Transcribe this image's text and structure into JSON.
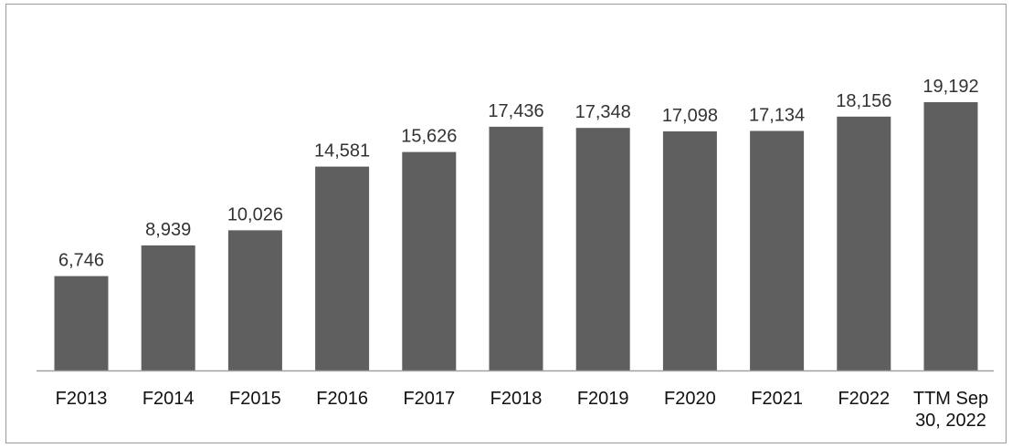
{
  "chart_data": {
    "type": "bar",
    "categories": [
      "F2013",
      "F2014",
      "F2015",
      "F2016",
      "F2017",
      "F2018",
      "F2019",
      "F2020",
      "F2021",
      "F2022",
      "TTM Sep 30, 2022"
    ],
    "category_lines": [
      [
        "F2013"
      ],
      [
        "F2014"
      ],
      [
        "F2015"
      ],
      [
        "F2016"
      ],
      [
        "F2017"
      ],
      [
        "F2018"
      ],
      [
        "F2019"
      ],
      [
        "F2020"
      ],
      [
        "F2021"
      ],
      [
        "F2022"
      ],
      [
        "TTM Sep",
        "30, 2022"
      ]
    ],
    "values": [
      6746,
      8939,
      10026,
      14581,
      15626,
      17436,
      17348,
      17098,
      17134,
      18156,
      19192
    ],
    "value_labels": [
      "6,746",
      "8,939",
      "10,026",
      "14,581",
      "15,626",
      "17,436",
      "17,348",
      "17,098",
      "17,134",
      "18,156",
      "19,192"
    ],
    "title": "",
    "xlabel": "",
    "ylabel": "",
    "ylim": [
      0,
      26500
    ],
    "grid": false,
    "legend": "none",
    "bar_color": "#5f5f5f",
    "axis_color": "#a0a0a0"
  }
}
